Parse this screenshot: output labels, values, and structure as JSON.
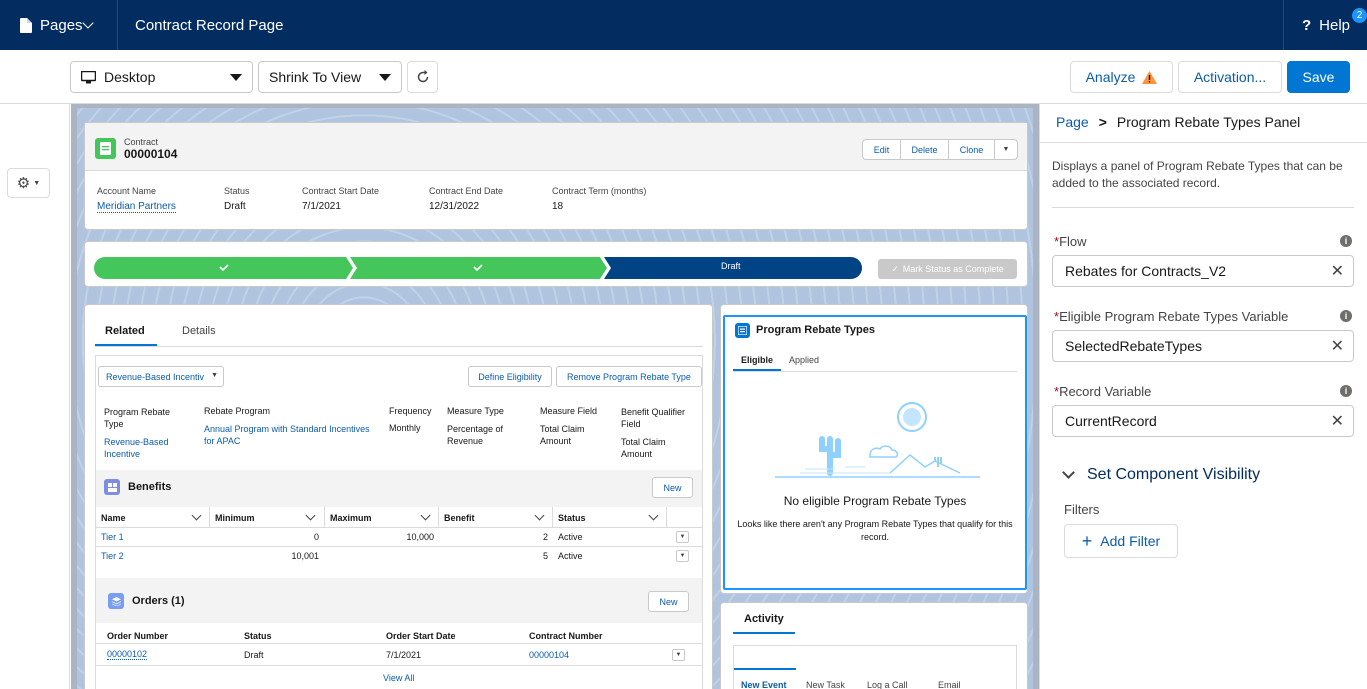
{
  "topbar": {
    "pages_label": "Pages",
    "title": "Contract Record Page",
    "help_label": "Help",
    "help_badge": "2"
  },
  "toolbar": {
    "device": "Desktop",
    "view": "Shrink To View",
    "analyze": "Analyze",
    "activation": "Activation...",
    "save": "Save"
  },
  "record": {
    "object": "Contract",
    "number": "00000104",
    "actions": [
      "Edit",
      "Delete",
      "Clone"
    ],
    "fields": [
      {
        "label": "Account Name",
        "value": "Meridian Partners"
      },
      {
        "label": "Status",
        "value": "Draft"
      },
      {
        "label": "Contract Start Date",
        "value": "7/1/2021"
      },
      {
        "label": "Contract End Date",
        "value": "12/31/2022"
      },
      {
        "label": "Contract Term (months)",
        "value": "18"
      }
    ]
  },
  "path": {
    "current": "Draft",
    "mark_complete": "Mark Status as Complete"
  },
  "related": {
    "tabs": [
      "Related",
      "Details"
    ],
    "picklist": "Revenue-Based Incentiv",
    "define_eligibility": "Define Eligibility",
    "remove_type": "Remove Program Rebate Type",
    "headers": {
      "type": "Program Rebate Type",
      "program": "Rebate Program",
      "frequency": "Frequency",
      "measure_type": "Measure Type",
      "measure_field": "Measure Field",
      "qualifier": "Benefit Qualifier Field"
    },
    "values": {
      "type": "Revenue-Based Incentive",
      "program": "Annual Program with Standard Incentives for APAC",
      "frequency": "Monthly",
      "measure_type": "Percentage of Revenue",
      "measure_field": "Total Claim Amount",
      "qualifier": "Total Claim Amount"
    },
    "benefits": {
      "title": "Benefits",
      "new_label": "New",
      "columns": [
        "Name",
        "Minimum",
        "Maximum",
        "Benefit",
        "Status"
      ],
      "rows": [
        {
          "name": "Tier 1",
          "min": "0",
          "max": "10,000",
          "benefit": "2",
          "status": "Active"
        },
        {
          "name": "Tier 2",
          "min": "10,001",
          "max": "",
          "benefit": "5",
          "status": "Active"
        }
      ]
    },
    "orders": {
      "title": "Orders (1)",
      "new_label": "New",
      "columns": [
        "Order Number",
        "Status",
        "Order Start Date",
        "Contract Number"
      ],
      "rows": [
        {
          "order": "00000102",
          "status": "Draft",
          "start": "7/1/2021",
          "contract": "00000104"
        }
      ],
      "view_all": "View All"
    }
  },
  "rebate_panel": {
    "title": "Program Rebate Types",
    "tabs": [
      "Eligible",
      "Applied"
    ],
    "empty_title": "No eligible Program Rebate Types",
    "empty_text": "Looks like there aren't any Program Rebate Types that qualify for this record."
  },
  "activity": {
    "title": "Activity",
    "tabs": [
      "New Event",
      "New Task",
      "Log a Call",
      "Email"
    ]
  },
  "properties": {
    "breadcrumb_root": "Page",
    "breadcrumb_sep": ">",
    "breadcrumb_current": "Program Rebate Types Panel",
    "description": "Displays a panel of Program Rebate Types that can be added to the associated record.",
    "flow_label": "Flow",
    "flow_value": "Rebates for Contracts_V2",
    "eligible_label": "Eligible Program Rebate Types Variable",
    "eligible_value": "SelectedRebateTypes",
    "record_label": "Record Variable",
    "record_value": "CurrentRecord",
    "visibility_label": "Set Component Visibility",
    "filters_label": "Filters",
    "add_filter": "Add Filter"
  },
  "colors": {
    "header": "#032d60",
    "brand": "#0176d3",
    "path_done": "#45c65a",
    "path_current": "#014486",
    "warning": "#fe9339"
  }
}
